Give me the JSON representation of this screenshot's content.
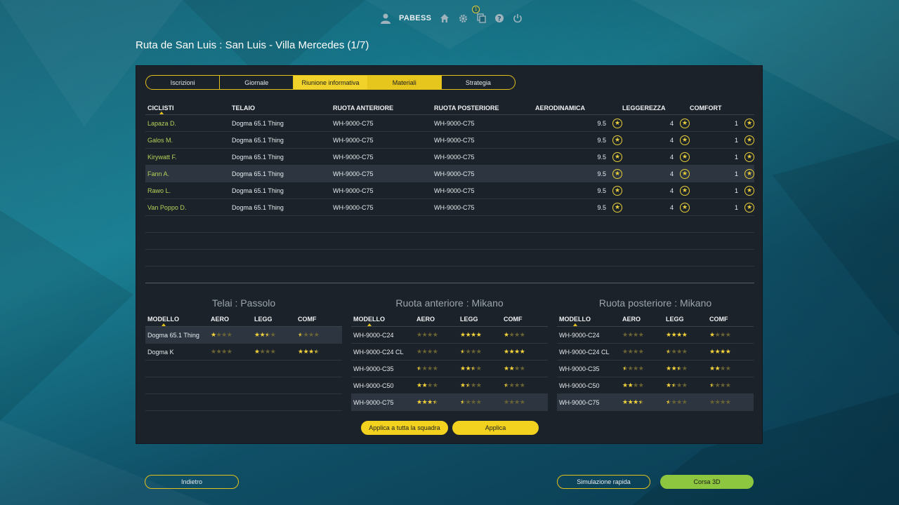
{
  "topbar": {
    "username": "PABESS",
    "notification_count": "1",
    "icons": [
      "user-icon",
      "home-icon",
      "gear-icon",
      "notifications-icon",
      "help-icon",
      "power-icon"
    ]
  },
  "race_title": "Ruta de San Luis : San Luis - Villa Mercedes (1/7)",
  "tabs": [
    {
      "label": "Iscrizioni"
    },
    {
      "label": "Giornale"
    },
    {
      "label": "Riunione informativa"
    },
    {
      "label": "Materiali"
    },
    {
      "label": "Strategia"
    }
  ],
  "main_table": {
    "headers": {
      "ciclisti": "CICLISTI",
      "telaio": "TELAIO",
      "ruota_anteriore": "RUOTA ANTERIORE",
      "ruota_posteriore": "RUOTA POSTERIORE",
      "aerodinamica": "AERODINAMICA",
      "leggerezza": "LEGGEREZZA",
      "comfort": "COMFORT"
    },
    "rows": [
      {
        "name": "Lapaza D.",
        "frame": "Dogma 65.1 Thing",
        "front": "WH-9000-C75",
        "rear": "WH-9000-C75",
        "aero": "9.5",
        "legg": "4",
        "comf": "1"
      },
      {
        "name": "Galos M.",
        "frame": "Dogma 65.1 Thing",
        "front": "WH-9000-C75",
        "rear": "WH-9000-C75",
        "aero": "9.5",
        "legg": "4",
        "comf": "1"
      },
      {
        "name": "Kirywatt F.",
        "frame": "Dogma 65.1 Thing",
        "front": "WH-9000-C75",
        "rear": "WH-9000-C75",
        "aero": "9.5",
        "legg": "4",
        "comf": "1"
      },
      {
        "name": "Fann A.",
        "frame": "Dogma 65.1 Thing",
        "front": "WH-9000-C75",
        "rear": "WH-9000-C75",
        "aero": "9.5",
        "legg": "4",
        "comf": "1"
      },
      {
        "name": "Rawo L.",
        "frame": "Dogma 65.1 Thing",
        "front": "WH-9000-C75",
        "rear": "WH-9000-C75",
        "aero": "9.5",
        "legg": "4",
        "comf": "1"
      },
      {
        "name": "Van Poppo D.",
        "frame": "Dogma 65.1 Thing",
        "front": "WH-9000-C75",
        "rear": "WH-9000-C75",
        "aero": "9.5",
        "legg": "4",
        "comf": "1"
      }
    ]
  },
  "frames": {
    "title": "Telai : Passolo",
    "headers": {
      "model": "MODELLO",
      "aero": "AERO",
      "legg": "LEGG",
      "comf": "COMF"
    },
    "rows": [
      {
        "model": "Dogma 65.1 Thing",
        "aero": 1,
        "legg": 2.5,
        "comf": 0.5
      },
      {
        "model": "Dogma K",
        "aero": 0,
        "legg": 1,
        "comf": 3.5
      }
    ]
  },
  "front_wheels": {
    "title": "Ruota anteriore : Mikano",
    "headers": {
      "model": "MODELLO",
      "aero": "AERO",
      "legg": "LEGG",
      "comf": "COMF"
    },
    "rows": [
      {
        "model": "WH-9000-C24",
        "aero": 0,
        "legg": 4,
        "comf": 1
      },
      {
        "model": "WH-9000-C24 CL",
        "aero": 0,
        "legg": 0.5,
        "comf": 4
      },
      {
        "model": "WH-9000-C35",
        "aero": 0.5,
        "legg": 2.5,
        "comf": 2
      },
      {
        "model": "WH-9000-C50",
        "aero": 2,
        "legg": 1.5,
        "comf": 0.5
      },
      {
        "model": "WH-9000-C75",
        "aero": 3.5,
        "legg": 0.5,
        "comf": 0
      }
    ]
  },
  "rear_wheels": {
    "title": "Ruota posteriore : Mikano",
    "headers": {
      "model": "MODELLO",
      "aero": "AERO",
      "legg": "LEGG",
      "comf": "COMF"
    },
    "rows": [
      {
        "model": "WH-9000-C24",
        "aero": 0,
        "legg": 4,
        "comf": 1
      },
      {
        "model": "WH-9000-C24 CL",
        "aero": 0,
        "legg": 0.5,
        "comf": 4
      },
      {
        "model": "WH-9000-C35",
        "aero": 0.5,
        "legg": 2.5,
        "comf": 2
      },
      {
        "model": "WH-9000-C50",
        "aero": 2,
        "legg": 1.5,
        "comf": 0.5
      },
      {
        "model": "WH-9000-C75",
        "aero": 3.5,
        "legg": 0.5,
        "comf": 0
      }
    ]
  },
  "buttons": {
    "apply_team": "Applica a tutta la squadra",
    "apply": "Applica",
    "back": "Indietro",
    "quick_sim": "Simulazione rapida",
    "race_3d": "Corsa 3D"
  },
  "colors": {
    "accent_yellow": "#f2d21f",
    "green": "#8dc63f",
    "rider_name": "#b7d25a"
  }
}
